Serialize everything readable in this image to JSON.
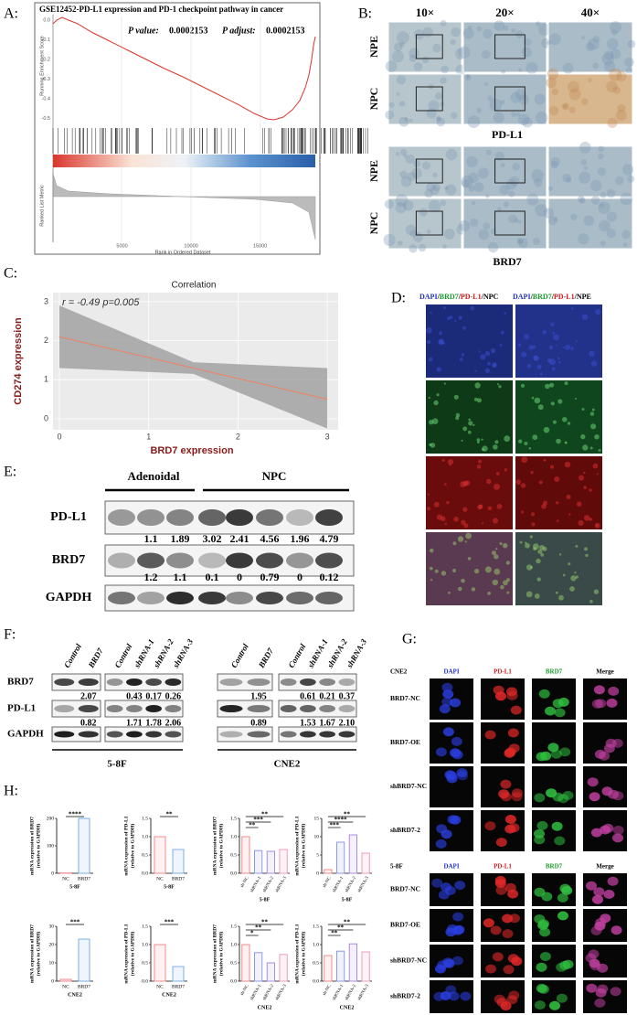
{
  "panels": {
    "A": {
      "label": "A:",
      "title": "GSE12452-PD-L1 expression and PD-1 checkpoint pathway in cancer",
      "p_value_label": "P value:",
      "p_value": "0.0002153",
      "p_adjust_label": "P adjust:",
      "p_adjust": "0.0002153",
      "y_label_top": "Running Enrichment Score",
      "y_ticks_top": [
        "0.0",
        "-0.1",
        "-0.2",
        "-0.3",
        "-0.4",
        "-0.5"
      ],
      "y_label_bottom": "Ranked List Metric",
      "x_ticks": [
        "5000",
        "10000",
        "15000"
      ],
      "x_label": "Rank in Ordered Dataset"
    },
    "B": {
      "label": "B:",
      "magnifications": [
        "10×",
        "20×",
        "40×"
      ],
      "groups": [
        {
          "rows": [
            "NPE",
            "NPC"
          ],
          "caption": "PD-L1"
        },
        {
          "rows": [
            "NPE",
            "NPC"
          ],
          "caption": "BRD7"
        }
      ]
    },
    "C": {
      "label": "C:",
      "title": "Correlation",
      "stats": "r = -0.49  p=0.005",
      "x_label": "BRD7 expression",
      "y_label": "CD274 expression",
      "x_ticks": [
        "0",
        "1",
        "2",
        "3"
      ],
      "y_ticks": [
        "0",
        "1",
        "2",
        "3"
      ]
    },
    "D": {
      "label": "D:",
      "legends": [
        {
          "parts": [
            "DAPI",
            "/",
            "BRD7",
            "/",
            "PD-L1",
            "/NPC"
          ]
        },
        {
          "parts": [
            "DAPI",
            "/",
            "BRD7",
            "/",
            "PD-L1",
            "/NPE"
          ]
        }
      ],
      "part_colors": [
        "#2233c0",
        "#000000",
        "#1a9a2a",
        "#000000",
        "#d01a1a",
        "#000000"
      ]
    },
    "E": {
      "label": "E:",
      "groups": [
        "Adenoidal",
        "NPC"
      ],
      "rows": [
        "PD-L1",
        "BRD7",
        "GAPDH"
      ],
      "pdl1_values": [
        "1.1",
        "1.89",
        "3.02",
        "2.41",
        "4.56",
        "1.96",
        "4.79"
      ],
      "brd7_values": [
        "1.2",
        "1.1",
        "0.1",
        "0",
        "0.79",
        "0",
        "0.12"
      ]
    },
    "F": {
      "label": "F:",
      "lanes": [
        [
          "Control",
          "BRD7"
        ],
        [
          "Control",
          "shRNA-1",
          "shRNA-2",
          "shRNA-3"
        ],
        [
          "Control",
          "BRD7"
        ],
        [
          "Control",
          "shRNA-1",
          "shRNA-2",
          "shRNA-3"
        ]
      ],
      "rows": [
        "BRD7",
        "PD-L1",
        "GAPDH"
      ],
      "brd7_values": [
        [
          "2.07"
        ],
        [
          "0.43",
          "0.17",
          "0.26"
        ],
        [
          "1.95"
        ],
        [
          "0.61",
          "0.21",
          "0.37"
        ]
      ],
      "pdl1_values": [
        [
          "0.82"
        ],
        [
          "1.71",
          "1.78",
          "2.06"
        ],
        [
          "0.89"
        ],
        [
          "1.53",
          "1.67",
          "2.10"
        ]
      ],
      "cell_lines": [
        "5-8F",
        "CNE2"
      ]
    },
    "G": {
      "label": "G:",
      "column_colors": [
        "#2233c0",
        "#d01a1a",
        "#1a9a2a",
        "#000000"
      ],
      "blocks": [
        {
          "cell_line": "CNE2",
          "columns": [
            "DAPI",
            "PD-L1",
            "BRD7",
            "Merge"
          ],
          "rows": [
            "BRD7-NC",
            "BRD7-OE",
            "shBRD7-NC",
            "shBRD7-2"
          ]
        },
        {
          "cell_line": "5-8F",
          "columns": [
            "DAPI",
            "PD-L1",
            "BRD7",
            "Merge"
          ],
          "rows": [
            "BRD7-NC",
            "BRD7-OE",
            "shBRD7-NC",
            "shBRD7-2"
          ]
        }
      ]
    },
    "H": {
      "label": "H:",
      "plots": [
        {
          "y_label": "mRNA expression of BRD7",
          "y_label_2": "(relative to GAPDH)",
          "categories": [
            "NC",
            "BRD7"
          ],
          "values": [
            1,
            200
          ],
          "ylim": [
            0,
            200
          ],
          "yticks": [
            "0",
            "100",
            "200"
          ],
          "significance": [
            "****"
          ],
          "x_label": "5-8F",
          "colors": [
            "#f08c8c",
            "#7fb0e6"
          ]
        },
        {
          "y_label": "mRNA expression of PD-L1",
          "y_label_2": "(relative to GAPDH)",
          "categories": [
            "NC",
            "BRD7"
          ],
          "values": [
            1.0,
            0.65
          ],
          "ylim": [
            0,
            1.5
          ],
          "yticks": [
            "0.0",
            "0.5",
            "1.0",
            "1.5"
          ],
          "significance": [
            "**"
          ],
          "x_label": "5-8F",
          "colors": [
            "#f08c8c",
            "#7fb0e6"
          ]
        },
        {
          "y_label": "mRNA expression of BRD7",
          "y_label_2": "(relative to GAPDH)",
          "categories": [
            "sh-NC",
            "shRNA-1",
            "shRNA-2",
            "shRNA-3"
          ],
          "values": [
            1.0,
            0.62,
            0.6,
            0.65
          ],
          "ylim": [
            0,
            1.5
          ],
          "yticks": [
            "0.0",
            "0.5",
            "1.0",
            "1.5"
          ],
          "significance": [
            "**",
            "***",
            "**"
          ],
          "x_label": "5-8F",
          "colors": [
            "#f08c8c",
            "#8c9ae6",
            "#a98ce0",
            "#f09cbc"
          ]
        },
        {
          "y_label": "mRNA expression of PD-L1",
          "y_label_2": "(relative to GAPDH)",
          "categories": [
            "sh-NC",
            "shRNA-1",
            "shRNA-2",
            "shRNA-3"
          ],
          "values": [
            1,
            8.5,
            10.5,
            5.5
          ],
          "ylim": [
            0,
            15
          ],
          "yticks": [
            "0",
            "5",
            "10",
            "15"
          ],
          "significance": [
            "***",
            "****",
            "**"
          ],
          "x_label": "5-8F",
          "colors": [
            "#f08c8c",
            "#8c9ae6",
            "#a98ce0",
            "#f09cbc"
          ]
        },
        {
          "y_label": "mRNA expression of BRD7",
          "y_label_2": "(relative to GAPDH)",
          "categories": [
            "NC",
            "BRD7"
          ],
          "values": [
            1,
            23
          ],
          "ylim": [
            0,
            30
          ],
          "yticks": [
            "0",
            "10",
            "20",
            "30"
          ],
          "significance": [
            "***"
          ],
          "x_label": "CNE2",
          "colors": [
            "#f08c8c",
            "#7fb0e6"
          ]
        },
        {
          "y_label": "mRNA expression of PD-L1",
          "y_label_2": "(relative to GAPDH)",
          "categories": [
            "NC",
            "BRD7"
          ],
          "values": [
            1.0,
            0.4
          ],
          "ylim": [
            0,
            1.5
          ],
          "yticks": [
            "0.0",
            "0.5",
            "1.0",
            "1.5"
          ],
          "significance": [
            "***"
          ],
          "x_label": "CNE2",
          "colors": [
            "#f08c8c",
            "#7fb0e6"
          ]
        },
        {
          "y_label": "mRNA expression of BRD7",
          "y_label_2": "(relative to GAPDH)",
          "categories": [
            "sh-NC",
            "shRNA-1",
            "shRNA-2",
            "shRNA-3"
          ],
          "values": [
            1.0,
            0.78,
            0.5,
            0.73
          ],
          "ylim": [
            0,
            1.5
          ],
          "yticks": [
            "0.0",
            "0.5",
            "1.0",
            "1.5"
          ],
          "significance": [
            "*",
            "**",
            "**"
          ],
          "x_label": "CNE2",
          "colors": [
            "#f08c8c",
            "#8c9ae6",
            "#a98ce0",
            "#f09cbc"
          ]
        },
        {
          "y_label": "mRNA expression of PD-L1",
          "y_label_2": "(relative to GAPDH)",
          "categories": [
            "sh-NC",
            "shRNA-1",
            "shRNA-2",
            "shRNA-3"
          ],
          "values": [
            0.7,
            0.82,
            1.02,
            0.8
          ],
          "ylim": [
            0,
            1.5
          ],
          "yticks": [
            "0.0",
            "0.5",
            "1.0",
            "1.5"
          ],
          "significance": [
            "**",
            "**",
            "**"
          ],
          "x_label": "CNE2",
          "colors": [
            "#f08c8c",
            "#8c9ae6",
            "#a98ce0",
            "#f09cbc"
          ]
        }
      ]
    }
  }
}
